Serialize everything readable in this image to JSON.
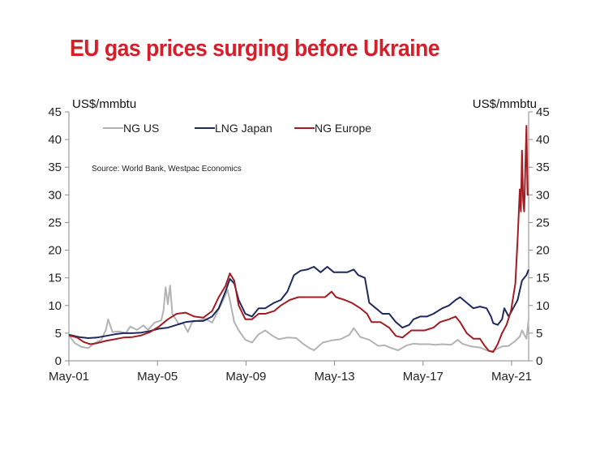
{
  "title": "EU gas prices surging before Ukraine",
  "chart_data": {
    "type": "line",
    "title": "EU gas prices surging before Ukraine",
    "ylabel_left": "US$/mmbtu",
    "ylabel_right": "US$/mmbtu",
    "source": "Source: World Bank, Westpac Economics",
    "ylim": [
      0,
      45
    ],
    "y_ticks": [
      0,
      5,
      10,
      15,
      20,
      25,
      30,
      35,
      40,
      45
    ],
    "xlim": [
      2001.33,
      2022.1
    ],
    "x_ticks": [
      {
        "label": "May-01",
        "value": 2001.33
      },
      {
        "label": "May-05",
        "value": 2005.33
      },
      {
        "label": "May-09",
        "value": 2009.33
      },
      {
        "label": "May-13",
        "value": 2013.33
      },
      {
        "label": "May-17",
        "value": 2017.33
      },
      {
        "label": "May-21",
        "value": 2021.33
      }
    ],
    "legend_position": "top-left",
    "grid": false,
    "series": [
      {
        "name": "NG US",
        "color": "#b3b3b3",
        "points": [
          [
            2001.33,
            4.6
          ],
          [
            2001.6,
            3.2
          ],
          [
            2001.9,
            2.5
          ],
          [
            2002.2,
            2.3
          ],
          [
            2002.5,
            3.2
          ],
          [
            2002.8,
            3.8
          ],
          [
            2003.0,
            5.6
          ],
          [
            2003.1,
            7.5
          ],
          [
            2003.3,
            5.2
          ],
          [
            2003.6,
            5.3
          ],
          [
            2003.9,
            5.0
          ],
          [
            2004.1,
            6.2
          ],
          [
            2004.4,
            5.6
          ],
          [
            2004.7,
            6.4
          ],
          [
            2004.9,
            5.6
          ],
          [
            2005.2,
            6.9
          ],
          [
            2005.5,
            7.3
          ],
          [
            2005.6,
            9.0
          ],
          [
            2005.7,
            13.3
          ],
          [
            2005.8,
            10.2
          ],
          [
            2005.9,
            13.6
          ],
          [
            2006.0,
            8.5
          ],
          [
            2006.3,
            6.6
          ],
          [
            2006.5,
            6.8
          ],
          [
            2006.7,
            5.2
          ],
          [
            2006.9,
            7.0
          ],
          [
            2007.2,
            7.3
          ],
          [
            2007.5,
            7.6
          ],
          [
            2007.8,
            6.9
          ],
          [
            2008.0,
            8.5
          ],
          [
            2008.3,
            11.0
          ],
          [
            2008.5,
            12.8
          ],
          [
            2008.6,
            11.0
          ],
          [
            2008.8,
            7.0
          ],
          [
            2009.0,
            5.5
          ],
          [
            2009.3,
            3.8
          ],
          [
            2009.6,
            3.3
          ],
          [
            2009.9,
            4.8
          ],
          [
            2010.2,
            5.5
          ],
          [
            2010.5,
            4.6
          ],
          [
            2010.8,
            3.9
          ],
          [
            2011.2,
            4.2
          ],
          [
            2011.6,
            4.1
          ],
          [
            2011.9,
            3.1
          ],
          [
            2012.2,
            2.3
          ],
          [
            2012.4,
            1.9
          ],
          [
            2012.8,
            3.3
          ],
          [
            2013.2,
            3.7
          ],
          [
            2013.6,
            3.9
          ],
          [
            2014.0,
            4.7
          ],
          [
            2014.2,
            5.9
          ],
          [
            2014.5,
            4.3
          ],
          [
            2014.9,
            3.8
          ],
          [
            2015.3,
            2.7
          ],
          [
            2015.6,
            2.8
          ],
          [
            2015.9,
            2.3
          ],
          [
            2016.2,
            1.9
          ],
          [
            2016.6,
            2.8
          ],
          [
            2016.9,
            3.1
          ],
          [
            2017.2,
            3.0
          ],
          [
            2017.6,
            3.0
          ],
          [
            2017.9,
            2.9
          ],
          [
            2018.2,
            3.0
          ],
          [
            2018.6,
            2.9
          ],
          [
            2018.9,
            3.8
          ],
          [
            2019.1,
            3.1
          ],
          [
            2019.5,
            2.6
          ],
          [
            2019.9,
            2.4
          ],
          [
            2020.2,
            1.9
          ],
          [
            2020.4,
            1.7
          ],
          [
            2020.7,
            2.2
          ],
          [
            2020.9,
            2.6
          ],
          [
            2021.2,
            2.7
          ],
          [
            2021.5,
            3.6
          ],
          [
            2021.7,
            4.4
          ],
          [
            2021.8,
            5.5
          ],
          [
            2022.0,
            4.0
          ],
          [
            2022.1,
            7.5
          ]
        ]
      },
      {
        "name": "LNG Japan",
        "color": "#1f2a5c",
        "points": [
          [
            2001.33,
            4.7
          ],
          [
            2001.8,
            4.3
          ],
          [
            2002.2,
            4.1
          ],
          [
            2002.6,
            4.2
          ],
          [
            2003.0,
            4.5
          ],
          [
            2003.4,
            4.8
          ],
          [
            2003.8,
            5.0
          ],
          [
            2004.2,
            5.0
          ],
          [
            2004.6,
            5.1
          ],
          [
            2005.0,
            5.4
          ],
          [
            2005.4,
            5.8
          ],
          [
            2005.8,
            6.0
          ],
          [
            2006.2,
            6.5
          ],
          [
            2006.6,
            7.0
          ],
          [
            2007.0,
            7.2
          ],
          [
            2007.4,
            7.2
          ],
          [
            2007.8,
            8.0
          ],
          [
            2008.1,
            9.5
          ],
          [
            2008.4,
            12.5
          ],
          [
            2008.6,
            14.8
          ],
          [
            2008.8,
            14.0
          ],
          [
            2009.0,
            11.0
          ],
          [
            2009.3,
            8.5
          ],
          [
            2009.6,
            8.0
          ],
          [
            2009.9,
            9.5
          ],
          [
            2010.2,
            9.5
          ],
          [
            2010.6,
            10.5
          ],
          [
            2010.9,
            11.0
          ],
          [
            2011.2,
            12.5
          ],
          [
            2011.5,
            15.5
          ],
          [
            2011.8,
            16.3
          ],
          [
            2012.1,
            16.5
          ],
          [
            2012.4,
            17.0
          ],
          [
            2012.7,
            16.0
          ],
          [
            2013.0,
            17.0
          ],
          [
            2013.3,
            16.0
          ],
          [
            2013.6,
            16.0
          ],
          [
            2013.9,
            16.0
          ],
          [
            2014.2,
            16.5
          ],
          [
            2014.4,
            15.5
          ],
          [
            2014.7,
            15.0
          ],
          [
            2014.9,
            10.5
          ],
          [
            2015.2,
            9.5
          ],
          [
            2015.5,
            8.5
          ],
          [
            2015.8,
            8.5
          ],
          [
            2016.1,
            7.0
          ],
          [
            2016.4,
            6.0
          ],
          [
            2016.7,
            6.5
          ],
          [
            2016.9,
            7.5
          ],
          [
            2017.2,
            8.0
          ],
          [
            2017.5,
            8.0
          ],
          [
            2017.8,
            8.5
          ],
          [
            2018.2,
            9.5
          ],
          [
            2018.5,
            10.0
          ],
          [
            2018.8,
            11.0
          ],
          [
            2019.0,
            11.5
          ],
          [
            2019.3,
            10.5
          ],
          [
            2019.6,
            9.5
          ],
          [
            2019.9,
            9.8
          ],
          [
            2020.2,
            9.5
          ],
          [
            2020.4,
            8.0
          ],
          [
            2020.5,
            6.8
          ],
          [
            2020.7,
            6.5
          ],
          [
            2020.9,
            7.5
          ],
          [
            2021.0,
            9.5
          ],
          [
            2021.2,
            8.0
          ],
          [
            2021.4,
            9.5
          ],
          [
            2021.6,
            11.0
          ],
          [
            2021.8,
            14.5
          ],
          [
            2022.0,
            15.5
          ],
          [
            2022.1,
            16.5
          ]
        ]
      },
      {
        "name": "NG Europe",
        "color": "#a21d23",
        "points": [
          [
            2001.33,
            4.6
          ],
          [
            2001.7,
            4.2
          ],
          [
            2002.0,
            3.4
          ],
          [
            2002.3,
            3.0
          ],
          [
            2002.6,
            3.2
          ],
          [
            2003.0,
            3.6
          ],
          [
            2003.4,
            3.9
          ],
          [
            2003.8,
            4.2
          ],
          [
            2004.2,
            4.3
          ],
          [
            2004.6,
            4.6
          ],
          [
            2005.0,
            5.2
          ],
          [
            2005.4,
            6.2
          ],
          [
            2005.8,
            7.5
          ],
          [
            2006.2,
            8.5
          ],
          [
            2006.6,
            8.7
          ],
          [
            2007.0,
            8.0
          ],
          [
            2007.4,
            7.8
          ],
          [
            2007.8,
            9.0
          ],
          [
            2008.1,
            11.5
          ],
          [
            2008.4,
            13.5
          ],
          [
            2008.6,
            15.8
          ],
          [
            2008.8,
            14.5
          ],
          [
            2009.0,
            10.0
          ],
          [
            2009.3,
            7.5
          ],
          [
            2009.6,
            7.5
          ],
          [
            2009.9,
            8.5
          ],
          [
            2010.2,
            8.5
          ],
          [
            2010.6,
            9.0
          ],
          [
            2010.9,
            10.0
          ],
          [
            2011.3,
            11.0
          ],
          [
            2011.7,
            11.5
          ],
          [
            2012.1,
            11.5
          ],
          [
            2012.5,
            11.5
          ],
          [
            2012.9,
            11.5
          ],
          [
            2013.2,
            12.5
          ],
          [
            2013.4,
            11.5
          ],
          [
            2013.8,
            11.0
          ],
          [
            2014.1,
            10.5
          ],
          [
            2014.5,
            9.5
          ],
          [
            2014.8,
            8.5
          ],
          [
            2015.0,
            7.0
          ],
          [
            2015.4,
            7.0
          ],
          [
            2015.8,
            6.0
          ],
          [
            2016.1,
            4.5
          ],
          [
            2016.4,
            4.2
          ],
          [
            2016.8,
            5.5
          ],
          [
            2017.1,
            5.5
          ],
          [
            2017.4,
            5.5
          ],
          [
            2017.8,
            6.0
          ],
          [
            2018.1,
            7.0
          ],
          [
            2018.5,
            7.5
          ],
          [
            2018.8,
            8.0
          ],
          [
            2019.0,
            7.0
          ],
          [
            2019.3,
            5.0
          ],
          [
            2019.6,
            4.0
          ],
          [
            2019.9,
            4.0
          ],
          [
            2020.1,
            2.8
          ],
          [
            2020.3,
            1.8
          ],
          [
            2020.5,
            1.6
          ],
          [
            2020.7,
            3.0
          ],
          [
            2020.9,
            5.0
          ],
          [
            2021.1,
            6.5
          ],
          [
            2021.3,
            9.0
          ],
          [
            2021.5,
            14.0
          ],
          [
            2021.6,
            22.0
          ],
          [
            2021.7,
            31.0
          ],
          [
            2021.75,
            27.0
          ],
          [
            2021.8,
            38.0
          ],
          [
            2021.85,
            29.0
          ],
          [
            2021.9,
            27.0
          ],
          [
            2022.0,
            42.5
          ],
          [
            2022.05,
            30.0
          ],
          [
            2022.1,
            30.0
          ]
        ]
      }
    ]
  }
}
